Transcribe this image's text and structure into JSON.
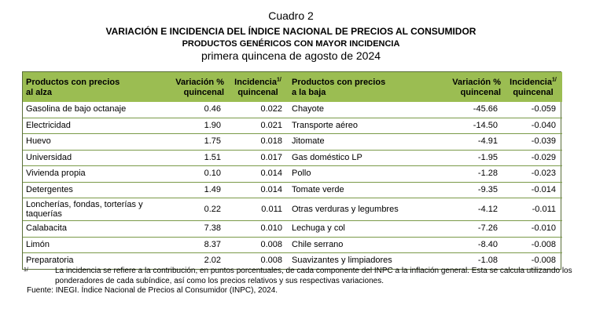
{
  "titles": {
    "cuadro": "Cuadro 2",
    "main": "VARIACIÓN E INCIDENCIA DEL ÍNDICE NACIONAL DE PRECIOS AL CONSUMIDOR",
    "sub": "PRODUCTOS GENÉRICOS CON MAYOR INCIDENCIA",
    "period": "primera quincena de agosto de 2024"
  },
  "headers": {
    "alza_l1": "Productos con precios",
    "alza_l2": "al alza",
    "var_l1": "Variación %",
    "var_l2": "quincenal",
    "inc_l1": "Incidencia",
    "inc_sup": "1/",
    "inc_l2": "quincenal",
    "baja_l1": "Productos con precios",
    "baja_l2": "a la baja",
    "var2_l1": "Variación %",
    "var2_l2": "quincenal",
    "inc2_l1": "Incidencia",
    "inc2_sup": "1/",
    "inc2_l2": "quincenal"
  },
  "rows": [
    {
      "up": "Gasolina de bajo octanaje",
      "up_var": "0.46",
      "up_inc": "0.022",
      "down": "Chayote",
      "down_var": "-45.66",
      "down_inc": "-0.059"
    },
    {
      "up": "Electricidad",
      "up_var": "1.90",
      "up_inc": "0.021",
      "down": "Transporte aéreo",
      "down_var": "-14.50",
      "down_inc": "-0.040"
    },
    {
      "up": "Huevo",
      "up_var": "1.75",
      "up_inc": "0.018",
      "down": "Jitomate",
      "down_var": "-4.91",
      "down_inc": "-0.039"
    },
    {
      "up": "Universidad",
      "up_var": "1.51",
      "up_inc": "0.017",
      "down": "Gas doméstico LP",
      "down_var": "-1.95",
      "down_inc": "-0.029"
    },
    {
      "up": "Vivienda propia",
      "up_var": "0.10",
      "up_inc": "0.014",
      "down": "Pollo",
      "down_var": "-1.28",
      "down_inc": "-0.023"
    },
    {
      "up": "Detergentes",
      "up_var": "1.49",
      "up_inc": "0.014",
      "down": "Tomate verde",
      "down_var": "-9.35",
      "down_inc": "-0.014"
    },
    {
      "up": "Loncherías, fondas, torterías y taquerías",
      "up_var": "0.22",
      "up_inc": "0.011",
      "down": "Otras verduras y legumbres",
      "down_var": "-4.12",
      "down_inc": "-0.011"
    },
    {
      "up": "Calabacita",
      "up_var": "7.38",
      "up_inc": "0.010",
      "down": "Lechuga y col",
      "down_var": "-7.26",
      "down_inc": "-0.010"
    },
    {
      "up": "Limón",
      "up_var": "8.37",
      "up_inc": "0.008",
      "down": "Chile serrano",
      "down_var": "-8.40",
      "down_inc": "-0.008"
    },
    {
      "up": "Preparatoria",
      "up_var": "2.02",
      "up_inc": "0.008",
      "down": "Suavizantes y limpiadores",
      "down_var": "-1.08",
      "down_inc": "-0.008"
    }
  ],
  "notes": {
    "mark": "1/",
    "text": "La incidencia se refiere a la contribución, en puntos porcentuales, de cada componente del INPC a la inflación general. Esta se calcula utilizando los ponderadores de cada subíndice, así como los precios relativos y sus respectivas variaciones.",
    "source": "Fuente: INEGI. Índice Nacional de Precios al Consumidor (INPC), 2024."
  },
  "colors": {
    "header_bg": "#9bbd52",
    "border": "#7a9a48"
  }
}
